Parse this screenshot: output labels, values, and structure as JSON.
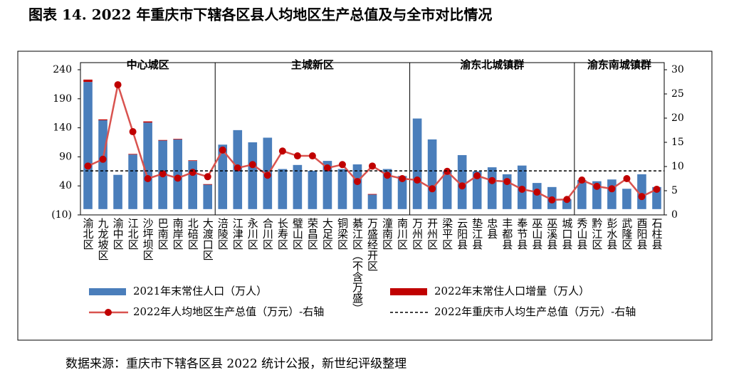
{
  "title": "图表 14. 2022 年重庆市下辖各区县人均地区生产总值及与全市对比情况",
  "source": "数据来源：重庆市下辖各区县 2022 统计公报，新世纪评级整理",
  "chart_data": {
    "type": "bar",
    "groups": [
      {
        "name": "中心城区",
        "categories": [
          "渝北区",
          "九龙坡区",
          "渝中区",
          "江北区",
          "沙坪坝区",
          "巴南区",
          "南岸区",
          "北碚区",
          "大渡口区"
        ]
      },
      {
        "name": "主城新区",
        "categories": [
          "涪陵区",
          "江津区",
          "永川区",
          "合川区",
          "长寿区",
          "璧山区",
          "荣昌区",
          "大足区",
          "铜梁区",
          "綦江区（不含万盛）",
          "万盛经开区",
          "潼南区",
          "南川区"
        ]
      },
      {
        "name": "渝东北城镇群",
        "categories": [
          "万州区",
          "开州区",
          "梁平区",
          "云阳县",
          "垫江县",
          "忠县",
          "丰都县",
          "奉节县",
          "巫山县",
          "巫溪县",
          "城口县"
        ]
      },
      {
        "name": "渝东南城镇群",
        "categories": [
          "秀山县",
          "黔江区",
          "彭水县",
          "武隆区",
          "酉阳县",
          "石柱县"
        ]
      }
    ],
    "series": [
      {
        "name": "2021年末常住人口（万人）",
        "color": "#4a7ebb",
        "kind": "bar",
        "values": [
          219,
          153,
          59,
          94,
          149,
          118,
          120,
          83,
          42,
          111,
          136,
          115,
          123,
          69,
          76,
          66,
          83,
          69,
          77,
          25,
          69,
          57,
          156,
          120,
          65,
          93,
          65,
          72,
          60,
          75,
          45,
          38,
          17,
          50,
          48,
          51,
          35,
          60,
          38
        ]
      },
      {
        "name": "2022年末常住人口增量（万人）",
        "color": "#c00000",
        "kind": "stack",
        "values": [
          4,
          1.5,
          0,
          1,
          2,
          1,
          1,
          1,
          1,
          0,
          0,
          0,
          0,
          0,
          0,
          0,
          0,
          0,
          0,
          1,
          0,
          0,
          0,
          0,
          0,
          0,
          0,
          0,
          0,
          0,
          0,
          0,
          0,
          0,
          0,
          0,
          0,
          0,
          0
        ]
      },
      {
        "name": "2022年人均地区生产总值（万元）-右轴",
        "color": "#d9534f",
        "kind": "line",
        "axis": "y2",
        "values": [
          10.1,
          11.5,
          26.9,
          17.2,
          7.5,
          8.5,
          7.6,
          8.8,
          7.9,
          13.4,
          9.7,
          10.4,
          8.2,
          13.2,
          12.2,
          12.2,
          9.7,
          10.4,
          6.9,
          10.1,
          8.2,
          7.5,
          7.2,
          5.4,
          9.0,
          6.0,
          8.1,
          7.1,
          6.9,
          5.3,
          4.7,
          3.1,
          3.2,
          7.2,
          5.9,
          5.4,
          7.5,
          3.8,
          5.3
        ]
      },
      {
        "name": "2022年重庆市人均生产总值（万元）-右轴",
        "color": "#000000",
        "kind": "hline",
        "axis": "y2",
        "values": [
          9.1
        ]
      }
    ],
    "ylim": [
      -10,
      240
    ],
    "yticks": [
      {
        "value": -10,
        "label": "(10)"
      },
      40,
      90,
      140,
      190,
      240
    ],
    "y2lim": [
      0,
      30
    ],
    "y2ticks": [
      0,
      5,
      10,
      15,
      20,
      25,
      30
    ],
    "legend": "bottom"
  }
}
